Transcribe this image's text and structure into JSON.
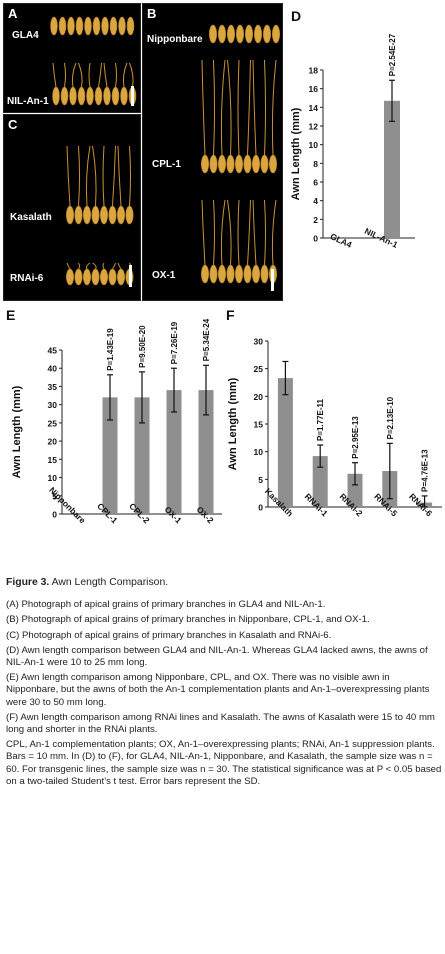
{
  "figure": {
    "A": {
      "letter": "A",
      "label_top": "GLA4",
      "label_bottom": "NIL-An-1"
    },
    "B": {
      "letter": "B",
      "label_top": "Nipponbare",
      "label_mid": "CPL-1",
      "label_bottom": "OX-1"
    },
    "C": {
      "letter": "C",
      "label_top": "Kasalath",
      "label_bottom": "RNAi-6"
    }
  },
  "colors": {
    "bar": "#8f8f8f",
    "photo_bg": "#000000",
    "grain": "#d9a640"
  },
  "chart_data": [
    {
      "panel": "D",
      "type": "bar",
      "categories": [
        "GLA4",
        "NIL-An-1"
      ],
      "values": [
        0,
        14.7
      ],
      "errors": [
        0,
        2.2
      ],
      "pvalues": [
        "",
        "P=2.54E-27"
      ],
      "ylabel": "Awn Length (mm)",
      "ylim": [
        0,
        18
      ],
      "yticks": [
        0,
        2,
        4,
        6,
        8,
        10,
        12,
        14,
        16,
        18
      ]
    },
    {
      "panel": "E",
      "type": "bar",
      "categories": [
        "Nipponbare",
        "CPL-1",
        "CPL-2",
        "OX-1",
        "OX-2"
      ],
      "values": [
        0,
        32,
        32,
        34,
        34
      ],
      "errors": [
        0,
        6.2,
        7.0,
        6.0,
        6.8
      ],
      "pvalues": [
        "",
        "P=1.43E-19",
        "P=9.50E-20",
        "P=7.26E-19",
        "P=5.34E-24"
      ],
      "ylabel": "Awn Length (mm)",
      "ylim": [
        0,
        45
      ],
      "yticks": [
        0,
        5,
        10,
        15,
        20,
        25,
        30,
        35,
        40,
        45
      ]
    },
    {
      "panel": "F",
      "type": "bar",
      "categories": [
        "Kasalath",
        "RNAi-1",
        "RNAi-2",
        "RNAi-5",
        "RNAi-6"
      ],
      "values": [
        23.3,
        9.2,
        6.0,
        6.5,
        0.8
      ],
      "errors": [
        3.0,
        2.0,
        2.0,
        5.0,
        1.2
      ],
      "pvalues": [
        "",
        "P=1.77E-11",
        "P=2.95E-13",
        "P=2.13E-10",
        "P=4.76E-13"
      ],
      "ylabel": "Awn Length (mm)",
      "ylim": [
        0,
        30
      ],
      "yticks": [
        0,
        5,
        10,
        15,
        20,
        25,
        30
      ]
    }
  ],
  "caption": {
    "title_bold": "Figure 3.",
    "title_text": " Awn Length Comparison.",
    "A": "(A) Photograph of apical grains of primary branches in GLA4 and NIL-An-1.",
    "B": "(B) Photograph of apical grains of primary branches in Nipponbare, CPL-1, and OX-1.",
    "C": "(C) Photograph of apical grains of primary branches in Kasalath and RNAi-6.",
    "D": "(D) Awn length comparison between GLA4 and NIL-An-1. Whereas GLA4 lacked awns, the awns of NIL-An-1 were 10 to 25 mm long.",
    "E": "(E) Awn length comparison among Nipponbare, CPL, and OX. There was no visible awn in Nipponbare, but the awns of both the An-1 complementation plants and An-1–overexpressing plants were 30 to 50 mm long.",
    "F": "(F) Awn length comparison among RNAi lines and Kasalath. The awns of Kasalath were 15 to 40 mm long and shorter in the RNAi plants.",
    "notes": "CPL, An-1 complementation plants; OX, An-1–overexpressing plants; RNAi, An-1 suppression plants. Bars = 10 mm. In (D) to (F), for GLA4, NIL-An-1, Nipponbare, and Kasalath, the sample size was n = 60. For transgenic lines, the sample size was n = 30. The statistical significance was at P < 0.05 based on a two-tailed Student’s t test. Error bars represent the SD."
  }
}
